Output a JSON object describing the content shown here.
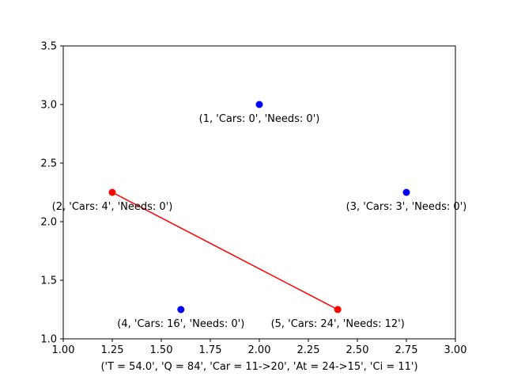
{
  "chart_data": {
    "type": "scatter",
    "xlabel": "('T = 54.0', 'Q = 84', 'Car = 11->20', 'At = 24->15', 'Ci = 11')",
    "ylabel": "",
    "xlim": [
      1.0,
      3.0
    ],
    "ylim": [
      1.0,
      3.5
    ],
    "x_ticks": [
      "1.00",
      "1.25",
      "1.50",
      "1.75",
      "2.00",
      "2.25",
      "2.50",
      "2.75",
      "3.00"
    ],
    "y_ticks": [
      "1.0",
      "1.5",
      "2.0",
      "2.5",
      "3.0",
      "3.5"
    ],
    "grid": false,
    "points": [
      {
        "x": 2.0,
        "y": 3.0,
        "color": "#0000ff",
        "label": "(1, 'Cars: 0', 'Needs: 0')"
      },
      {
        "x": 1.25,
        "y": 2.25,
        "color": "#ff0000",
        "label": "(2, 'Cars: 4', 'Needs: 0')"
      },
      {
        "x": 2.75,
        "y": 2.25,
        "color": "#0000ff",
        "label": "(3, 'Cars: 3', 'Needs: 0')"
      },
      {
        "x": 1.6,
        "y": 1.25,
        "color": "#0000ff",
        "label": "(4, 'Cars: 16', 'Needs: 0')"
      },
      {
        "x": 2.4,
        "y": 1.25,
        "color": "#ff0000",
        "label": "(5, 'Cars: 24', 'Needs: 12')"
      }
    ],
    "route": {
      "color": "#ff0000",
      "x": [
        1.25,
        2.4
      ],
      "y": [
        2.25,
        1.25
      ]
    }
  }
}
